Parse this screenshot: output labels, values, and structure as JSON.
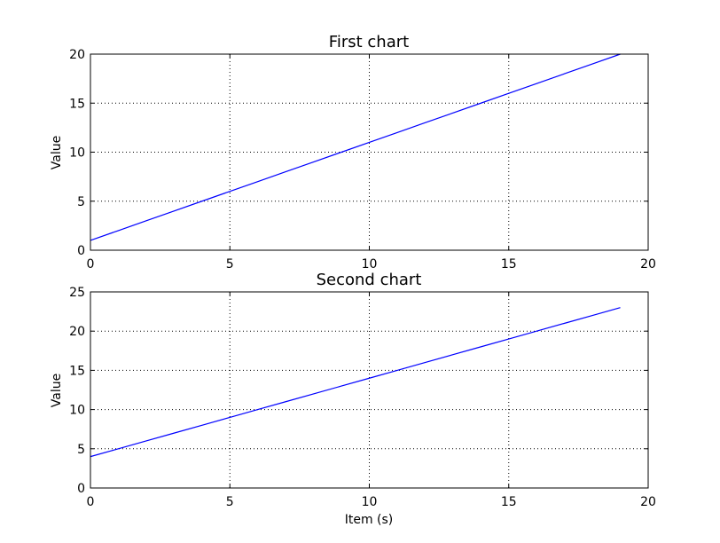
{
  "chart_data": [
    {
      "type": "line",
      "title": "First chart",
      "xlabel": "",
      "ylabel": "Value",
      "xlim": [
        0,
        20
      ],
      "ylim": [
        0,
        20
      ],
      "xticks": [
        "0",
        "5",
        "10",
        "15",
        "20"
      ],
      "yticks": [
        "0",
        "5",
        "10",
        "15",
        "20"
      ],
      "grid": true,
      "x": [
        0,
        1,
        2,
        3,
        4,
        5,
        6,
        7,
        8,
        9,
        10,
        11,
        12,
        13,
        14,
        15,
        16,
        17,
        18,
        19
      ],
      "series": [
        {
          "values": [
            1,
            2,
            3,
            4,
            5,
            6,
            7,
            8,
            9,
            10,
            11,
            12,
            13,
            14,
            15,
            16,
            17,
            18,
            19,
            20
          ],
          "color": "#0000ff"
        }
      ]
    },
    {
      "type": "line",
      "title": "Second chart",
      "xlabel": "Item (s)",
      "ylabel": "Value",
      "xlim": [
        0,
        20
      ],
      "ylim": [
        0,
        25
      ],
      "xticks": [
        "0",
        "5",
        "10",
        "15",
        "20"
      ],
      "yticks": [
        "0",
        "5",
        "10",
        "15",
        "20",
        "25"
      ],
      "grid": true,
      "x": [
        0,
        1,
        2,
        3,
        4,
        5,
        6,
        7,
        8,
        9,
        10,
        11,
        12,
        13,
        14,
        15,
        16,
        17,
        18,
        19
      ],
      "series": [
        {
          "values": [
            4,
            5,
            6,
            7,
            8,
            9,
            10,
            11,
            12,
            13,
            14,
            15,
            16,
            17,
            18,
            19,
            20,
            21,
            22,
            23
          ],
          "color": "#0000ff"
        }
      ]
    }
  ]
}
